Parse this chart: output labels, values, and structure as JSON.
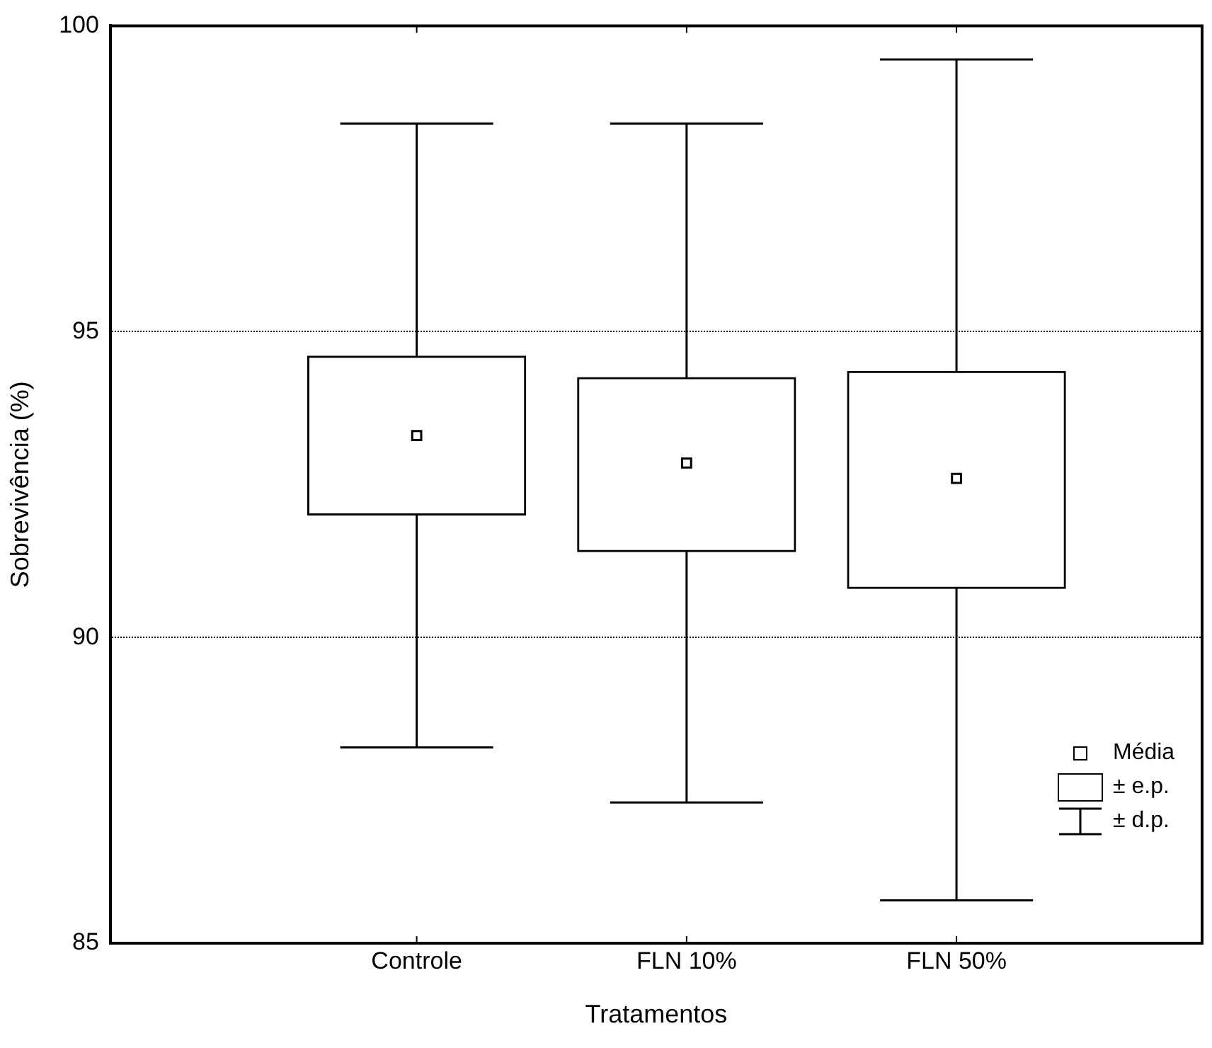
{
  "chart_data": {
    "type": "box",
    "xlabel": "Tratamentos",
    "ylabel": "Sobrevivência (%)",
    "categories": [
      "Controle",
      "FLN 10%",
      "FLN 50%"
    ],
    "boxes": [
      {
        "low": 88.2,
        "q1": 92.0,
        "q3": 94.6,
        "high": 98.4,
        "mean": 93.3
      },
      {
        "low": 87.3,
        "q1": 91.4,
        "q3": 94.25,
        "high": 98.4,
        "mean": 92.85
      },
      {
        "low": 85.7,
        "q1": 90.8,
        "q3": 94.35,
        "high": 99.45,
        "mean": 92.6
      }
    ],
    "ylim": [
      85,
      100
    ],
    "yticks": [
      85,
      90,
      95,
      100
    ],
    "grid": "y",
    "marker": "square",
    "annotations": [
      "Média",
      "± e.p.",
      "± d.p."
    ]
  }
}
